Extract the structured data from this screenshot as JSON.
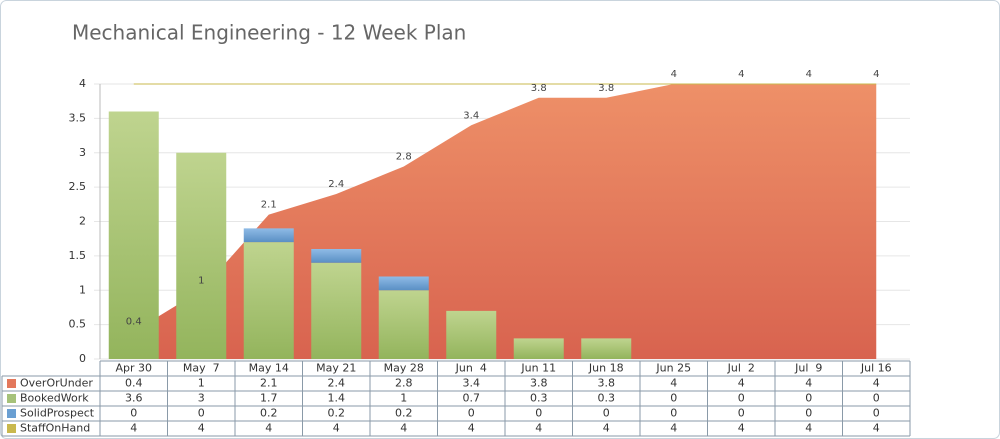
{
  "chart_data": {
    "type": "bar-area",
    "title": "Mechanical Engineering - 12 Week Plan",
    "categories": [
      "Apr 30",
      "May  7",
      "May 14",
      "May 21",
      "May 28",
      "Jun  4",
      "Jun 11",
      "Jun 18",
      "Jun 25",
      "Jul  2",
      "Jul  9",
      "Jul 16"
    ],
    "series": [
      {
        "name": "OverOrUnder",
        "color": "#e3785c",
        "kind": "area",
        "values": [
          0.4,
          1,
          2.1,
          2.4,
          2.8,
          3.4,
          3.8,
          3.8,
          4,
          4,
          4,
          4
        ]
      },
      {
        "name": "BookedWork",
        "color": "#a6c27a",
        "kind": "bar",
        "values": [
          3.6,
          3,
          1.7,
          1.4,
          1,
          0.7,
          0.3,
          0.3,
          0,
          0,
          0,
          0
        ]
      },
      {
        "name": "SolidProspect",
        "color": "#6a9fd2",
        "kind": "bar",
        "values": [
          0,
          0,
          0.2,
          0.2,
          0.2,
          0,
          0,
          0,
          0,
          0,
          0,
          0
        ]
      },
      {
        "name": "StaffOnHand",
        "color": "#c9b84e",
        "kind": "line",
        "values": [
          4,
          4,
          4,
          4,
          4,
          4,
          4,
          4,
          4,
          4,
          4,
          4
        ]
      }
    ],
    "ylim": [
      0,
      4
    ],
    "yticks": [
      0,
      0.5,
      1,
      1.5,
      2,
      2.5,
      3,
      3.5,
      4
    ],
    "grid": true
  }
}
